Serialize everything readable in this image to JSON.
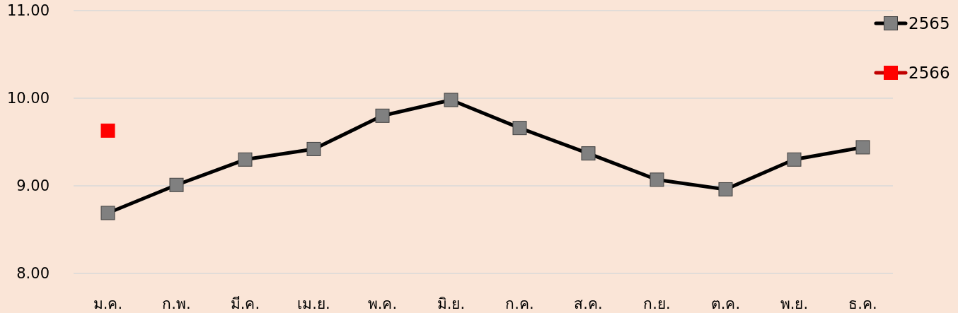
{
  "chart_data": {
    "type": "line",
    "categories": [
      "ม.ค.",
      "ก.พ.",
      "มี.ค.",
      "เม.ย.",
      "พ.ค.",
      "มิ.ย.",
      "ก.ค.",
      "ส.ค.",
      "ก.ย.",
      "ต.ค.",
      "พ.ย.",
      "ธ.ค."
    ],
    "series": [
      {
        "name": "2565",
        "color": "#000000",
        "values": [
          8.69,
          9.01,
          9.3,
          9.42,
          9.8,
          9.98,
          9.66,
          9.37,
          9.07,
          8.96,
          9.3,
          9.44
        ]
      },
      {
        "name": "2566",
        "color": "#ff0000",
        "values": [
          9.63,
          null,
          null,
          null,
          null,
          null,
          null,
          null,
          null,
          null,
          null,
          null
        ]
      }
    ],
    "ylim": [
      8,
      11
    ],
    "yticks": [
      {
        "value": 8,
        "label": "8.00"
      },
      {
        "value": 9,
        "label": "9.00"
      },
      {
        "value": 10,
        "label": "10.00"
      },
      {
        "value": 11,
        "label": "11.00"
      }
    ],
    "grid": "y",
    "legend": "top right",
    "marker": "square",
    "line_style": "solid"
  }
}
